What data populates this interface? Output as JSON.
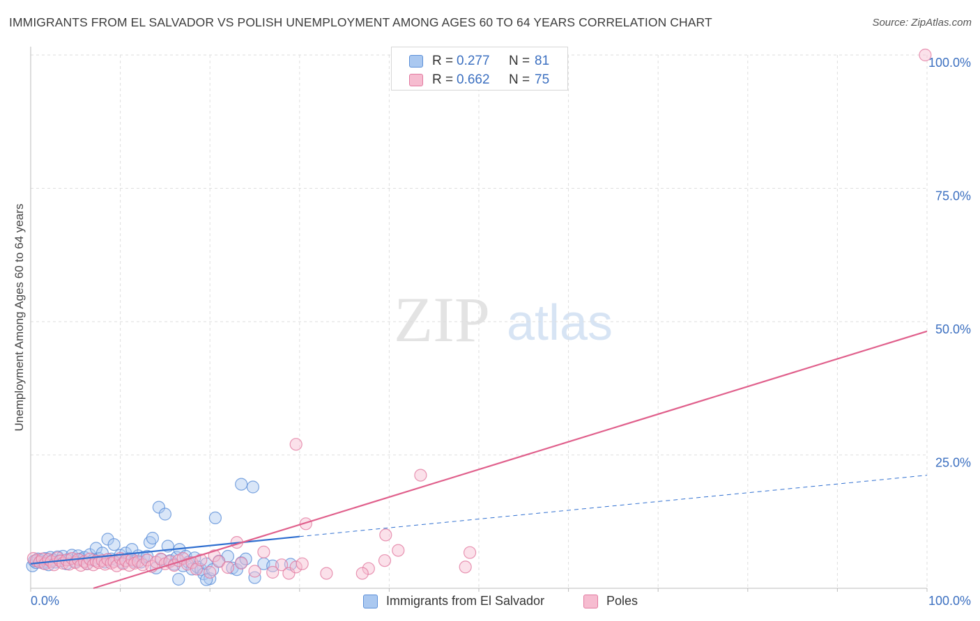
{
  "title": "IMMIGRANTS FROM EL SALVADOR VS POLISH UNEMPLOYMENT AMONG AGES 60 TO 64 YEARS CORRELATION CHART",
  "source": "Source: ZipAtlas.com",
  "watermark": {
    "zip": "ZIP",
    "atlas": "atlas"
  },
  "colors": {
    "blue_fill": "#aac8f0",
    "blue_stroke": "#5b8fd8",
    "blue_line": "#2f6fd0",
    "pink_fill": "#f6bcd0",
    "pink_stroke": "#e27aa0",
    "pink_line": "#e0608c",
    "value_text": "#3b6fc0",
    "grid": "#dedede"
  },
  "legend": [
    {
      "r_label": "R =",
      "r_value": "0.277",
      "n_label": "N =",
      "n_value": "81"
    },
    {
      "r_label": "R =",
      "r_value": "0.662",
      "n_label": "N =",
      "n_value": "75"
    }
  ],
  "chart_data": {
    "type": "scatter",
    "title": "IMMIGRANTS FROM EL SALVADOR VS POLISH UNEMPLOYMENT AMONG AGES 60 TO 64 YEARS CORRELATION CHART",
    "xlabel": "",
    "ylabel": "Unemployment Among Ages 60 to 64 years",
    "xlim": [
      0,
      100
    ],
    "ylim": [
      0,
      100
    ],
    "x_tick_labels": [
      "0.0%",
      "100.0%"
    ],
    "y_tick_values": [
      25,
      50,
      75,
      100
    ],
    "y_tick_labels": [
      "25.0%",
      "50.0%",
      "75.0%",
      "100.0%"
    ],
    "grid": true,
    "series": [
      {
        "name": "Immigrants from El Salvador",
        "color": "#5b8fd8",
        "R": 0.277,
        "N": 81,
        "trend": {
          "x0": 0,
          "y0": 4.6,
          "x1": 30,
          "y1": 9.7,
          "dashed_to_x": 100,
          "dashed_to_y": 21.2
        },
        "points": [
          [
            0.2,
            4.2
          ],
          [
            0.4,
            5.1
          ],
          [
            0.6,
            4.8
          ],
          [
            0.8,
            5.5
          ],
          [
            1.0,
            4.9
          ],
          [
            1.2,
            5.2
          ],
          [
            1.4,
            4.7
          ],
          [
            1.6,
            5.6
          ],
          [
            1.8,
            5.0
          ],
          [
            2.0,
            4.4
          ],
          [
            2.2,
            5.8
          ],
          [
            2.5,
            5.3
          ],
          [
            2.8,
            4.9
          ],
          [
            3.0,
            5.9
          ],
          [
            3.3,
            5.2
          ],
          [
            3.6,
            6.0
          ],
          [
            4.0,
            4.6
          ],
          [
            4.3,
            5.4
          ],
          [
            4.6,
            6.2
          ],
          [
            5.0,
            5.0
          ],
          [
            5.3,
            6.1
          ],
          [
            5.6,
            5.5
          ],
          [
            6.0,
            5.8
          ],
          [
            6.3,
            4.6
          ],
          [
            6.6,
            6.3
          ],
          [
            7.0,
            5.3
          ],
          [
            7.3,
            7.5
          ],
          [
            7.6,
            5.6
          ],
          [
            8.0,
            6.6
          ],
          [
            8.3,
            4.9
          ],
          [
            8.6,
            9.2
          ],
          [
            9.0,
            5.5
          ],
          [
            9.3,
            8.2
          ],
          [
            9.6,
            5.3
          ],
          [
            10.0,
            6.2
          ],
          [
            10.3,
            4.8
          ],
          [
            10.6,
            6.6
          ],
          [
            11.0,
            5.6
          ],
          [
            11.3,
            7.3
          ],
          [
            11.6,
            5.0
          ],
          [
            12.0,
            6.1
          ],
          [
            12.3,
            4.9
          ],
          [
            12.6,
            5.8
          ],
          [
            13.0,
            6.0
          ],
          [
            13.3,
            8.6
          ],
          [
            13.6,
            9.4
          ],
          [
            14.0,
            3.8
          ],
          [
            14.3,
            15.2
          ],
          [
            14.6,
            5.4
          ],
          [
            15.0,
            13.9
          ],
          [
            15.3,
            7.9
          ],
          [
            15.6,
            5.2
          ],
          [
            16.0,
            4.5
          ],
          [
            16.3,
            5.8
          ],
          [
            16.6,
            7.3
          ],
          [
            17.0,
            4.2
          ],
          [
            17.3,
            6.0
          ],
          [
            17.6,
            4.9
          ],
          [
            18.0,
            3.6
          ],
          [
            18.3,
            5.7
          ],
          [
            18.6,
            4.0
          ],
          [
            19.0,
            3.5
          ],
          [
            19.3,
            2.7
          ],
          [
            19.6,
            4.6
          ],
          [
            20.0,
            1.8
          ],
          [
            20.3,
            3.5
          ],
          [
            20.6,
            13.2
          ],
          [
            21.0,
            5.1
          ],
          [
            22.0,
            6.0
          ],
          [
            22.5,
            3.8
          ],
          [
            23.0,
            3.5
          ],
          [
            23.5,
            4.8
          ],
          [
            24.0,
            5.5
          ],
          [
            25.0,
            2.0
          ],
          [
            26.0,
            4.6
          ],
          [
            27.0,
            4.2
          ],
          [
            29.0,
            4.5
          ],
          [
            16.5,
            1.7
          ],
          [
            23.5,
            19.5
          ],
          [
            24.8,
            19.0
          ],
          [
            19.6,
            1.6
          ]
        ]
      },
      {
        "name": "Poles",
        "color": "#e27aa0",
        "R": 0.662,
        "N": 75,
        "trend": {
          "x0": 7,
          "y0": 0,
          "x1": 100,
          "y1": 48.2
        },
        "points": [
          [
            0.3,
            5.6
          ],
          [
            0.6,
            5.2
          ],
          [
            1.0,
            4.9
          ],
          [
            1.3,
            5.5
          ],
          [
            1.6,
            4.6
          ],
          [
            2.0,
            5.4
          ],
          [
            2.3,
            5.0
          ],
          [
            2.6,
            4.4
          ],
          [
            3.0,
            5.7
          ],
          [
            3.3,
            5.1
          ],
          [
            3.6,
            4.7
          ],
          [
            4.0,
            5.3
          ],
          [
            4.3,
            4.5
          ],
          [
            4.6,
            5.6
          ],
          [
            5.0,
            4.8
          ],
          [
            5.3,
            5.4
          ],
          [
            5.6,
            4.3
          ],
          [
            6.0,
            5.0
          ],
          [
            6.3,
            4.6
          ],
          [
            6.6,
            5.5
          ],
          [
            7.0,
            4.4
          ],
          [
            7.3,
            5.1
          ],
          [
            7.6,
            4.8
          ],
          [
            8.0,
            5.2
          ],
          [
            8.3,
            4.5
          ],
          [
            8.6,
            5.4
          ],
          [
            9.0,
            4.7
          ],
          [
            9.3,
            5.0
          ],
          [
            9.6,
            4.2
          ],
          [
            10.0,
            5.6
          ],
          [
            10.3,
            4.6
          ],
          [
            10.6,
            5.2
          ],
          [
            11.0,
            4.3
          ],
          [
            11.3,
            5.4
          ],
          [
            11.6,
            4.7
          ],
          [
            12.0,
            5.0
          ],
          [
            12.5,
            4.4
          ],
          [
            13.0,
            5.3
          ],
          [
            13.5,
            4.1
          ],
          [
            14.0,
            4.9
          ],
          [
            14.5,
            5.5
          ],
          [
            15.0,
            4.6
          ],
          [
            15.5,
            5.0
          ],
          [
            16.0,
            4.3
          ],
          [
            16.5,
            5.2
          ],
          [
            17.0,
            5.6
          ],
          [
            17.5,
            4.5
          ],
          [
            18.0,
            4.8
          ],
          [
            18.5,
            3.6
          ],
          [
            19.0,
            5.3
          ],
          [
            20.0,
            3.0
          ],
          [
            20.5,
            6.1
          ],
          [
            21.0,
            5.0
          ],
          [
            22.0,
            3.9
          ],
          [
            23.0,
            8.6
          ],
          [
            23.5,
            4.7
          ],
          [
            25.0,
            3.2
          ],
          [
            26.0,
            6.8
          ],
          [
            27.0,
            3.0
          ],
          [
            28.0,
            4.4
          ],
          [
            28.8,
            2.8
          ],
          [
            29.6,
            4.0
          ],
          [
            30.3,
            4.6
          ],
          [
            33.0,
            2.8
          ],
          [
            37.7,
            3.7
          ],
          [
            39.5,
            5.2
          ],
          [
            39.6,
            10.0
          ],
          [
            41.0,
            7.1
          ],
          [
            48.5,
            4.0
          ],
          [
            37.0,
            2.8
          ],
          [
            49.0,
            6.7
          ],
          [
            30.7,
            12.1
          ],
          [
            29.6,
            27.0
          ],
          [
            43.5,
            21.2
          ],
          [
            99.8,
            100.0
          ]
        ]
      }
    ]
  }
}
